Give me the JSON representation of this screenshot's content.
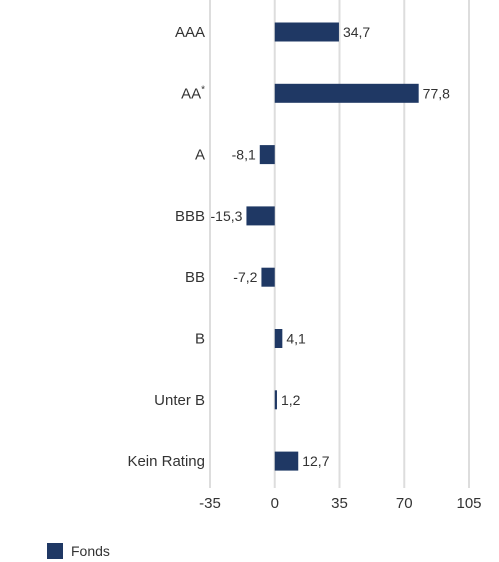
{
  "chart_data": {
    "type": "bar",
    "orientation": "horizontal",
    "categories": [
      "AAA",
      "AA*",
      "A",
      "BBB",
      "BB",
      "B",
      "Unter B",
      "Kein Rating"
    ],
    "series": [
      {
        "name": "Fonds",
        "values": [
          34.7,
          77.8,
          -8.1,
          -15.3,
          -7.2,
          4.1,
          1.2,
          12.7
        ]
      }
    ],
    "value_labels": [
      "34,7",
      "77,8",
      "-8,1",
      "-15,3",
      "-7,2",
      "4,1",
      "1,2",
      "12,7"
    ],
    "xlim": [
      -35,
      105
    ],
    "xticks": [
      -35,
      0,
      35,
      70,
      105
    ],
    "grid": true,
    "legend_position": "bottom-left",
    "bar_color": "#1f3864",
    "grid_color": "#dddddd"
  },
  "legend": {
    "label": "Fonds"
  }
}
